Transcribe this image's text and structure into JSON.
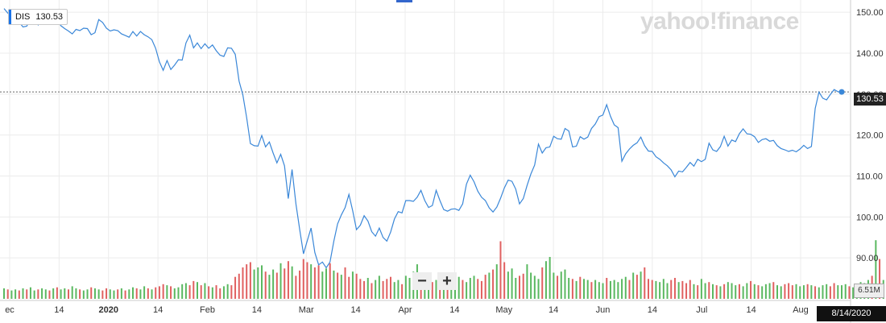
{
  "header": {
    "symbol": "DIS",
    "last_price": "130.53",
    "logo": "yahoo!finance"
  },
  "controls": {
    "zoom_out": "−",
    "zoom_in": "+"
  },
  "crosshair": {
    "date": "8/14/2020",
    "price": "130.53",
    "volume": "6.51M"
  },
  "colors": {
    "line": "#3a87d8",
    "volume_up": "#5ab860",
    "volume_down": "#e06060",
    "grid": "#ececec"
  },
  "chart_data": {
    "type": "line",
    "title": "",
    "symbol": "DIS",
    "y_axis": {
      "min": 80,
      "max": 152,
      "ticks": [
        "150.00",
        "140.00",
        "130.00",
        "120.00",
        "110.00",
        "100.00",
        "90.00"
      ],
      "side": "right"
    },
    "x_axis": {
      "tick_labels": [
        "ec",
        "14",
        "2020",
        "14",
        "Feb",
        "14",
        "Mar",
        "14",
        "Apr",
        "14",
        "May",
        "14",
        "Jun",
        "14",
        "Jul",
        "14",
        "Aug"
      ],
      "bold_labels": [
        "2020"
      ]
    },
    "grid": true,
    "reference_line": 130.53,
    "series": [
      {
        "values": [
          150.9,
          149.8,
          148.5,
          148.6,
          147.6,
          146.4,
          146.6,
          148.4,
          148.2,
          146.9,
          148.4,
          148.8,
          148.9,
          147.6,
          148.1,
          146.7,
          146.0,
          145.4,
          144.7,
          145.8,
          145.5,
          146.1,
          146.0,
          144.5,
          145.0,
          148.2,
          147.5,
          146.1,
          145.4,
          145.7,
          145.5,
          144.7,
          144.3,
          143.9,
          145.3,
          144.2,
          145.3,
          144.5,
          144.0,
          143.3,
          141.2,
          137.9,
          135.8,
          138.2,
          136.0,
          137.1,
          138.4,
          138.3,
          142.5,
          144.4,
          141.3,
          142.5,
          141.1,
          142.3,
          141.2,
          142.0,
          140.6,
          139.5,
          139.2,
          141.3,
          141.2,
          139.7,
          133.2,
          129.8,
          124.3,
          117.9,
          117.4,
          117.3,
          119.9,
          117.1,
          118.3,
          115.6,
          113.2,
          115.3,
          112.5,
          104.5,
          111.6,
          103.2,
          96.9,
          91.0,
          94.2,
          97.3,
          91.3,
          88.3,
          89.0,
          87.6,
          89.0,
          94.0,
          98.3,
          100.5,
          102.3,
          105.5,
          101.5,
          96.9,
          98.0,
          100.3,
          99.0,
          96.4,
          95.3,
          97.3,
          95.0,
          94.1,
          96.3,
          99.5,
          101.3,
          101.0,
          104.0,
          104.0,
          103.8,
          104.8,
          106.5,
          104.0,
          102.3,
          102.8,
          106.5,
          104.0,
          101.8,
          101.4,
          101.9,
          102.0,
          101.6,
          103.2,
          108.0,
          110.2,
          108.6,
          106.3,
          104.8,
          104.0,
          102.2,
          101.2,
          102.4,
          104.6,
          107.1,
          109.0,
          108.7,
          106.8,
          103.2,
          104.5,
          107.7,
          110.5,
          112.7,
          117.8,
          115.6,
          116.9,
          117.1,
          119.7,
          119.1,
          119.0,
          121.6,
          121.0,
          117.1,
          117.3,
          119.6,
          119.0,
          119.5,
          121.6,
          122.7,
          124.5,
          124.9,
          127.4,
          124.6,
          122.5,
          121.8,
          113.6,
          115.4,
          116.6,
          117.5,
          118.1,
          119.5,
          117.4,
          116.1,
          116.0,
          114.7,
          114.1,
          113.2,
          112.5,
          111.5,
          109.8,
          111.2,
          111.0,
          112.1,
          113.3,
          112.4,
          114.1,
          113.5,
          114.1,
          118.0,
          116.4,
          116.0,
          117.2,
          119.7,
          117.3,
          118.8,
          118.4,
          120.3,
          121.5,
          120.3,
          120.2,
          119.6,
          118.2,
          118.9,
          119.1,
          118.5,
          118.7,
          117.4,
          116.7,
          116.4,
          116.0,
          116.3,
          115.9,
          116.6,
          117.5,
          116.7,
          117.2,
          126.5,
          130.5,
          129.0,
          128.6,
          129.9,
          131.1,
          130.6,
          130.53
        ]
      }
    ],
    "volume": {
      "label": "6.51M",
      "values": [
        10,
        9,
        8,
        9,
        8,
        10,
        9,
        11,
        8,
        9,
        10,
        9,
        8,
        10,
        11,
        9,
        10,
        9,
        12,
        10,
        9,
        8,
        9,
        11,
        10,
        9,
        8,
        10,
        9,
        8,
        9,
        10,
        8,
        9,
        11,
        10,
        9,
        12,
        10,
        9,
        11,
        12,
        14,
        13,
        12,
        10,
        11,
        14,
        15,
        13,
        17,
        16,
        13,
        15,
        12,
        11,
        13,
        10,
        12,
        14,
        13,
        21,
        24,
        30,
        33,
        35,
        28,
        30,
        32,
        26,
        23,
        28,
        25,
        34,
        29,
        36,
        31,
        22,
        27,
        38,
        35,
        33,
        30,
        32,
        26,
        29,
        34,
        27,
        25,
        23,
        30,
        21,
        26,
        24,
        19,
        17,
        20,
        15,
        18,
        22,
        17,
        19,
        21,
        16,
        18,
        14,
        22,
        20,
        26,
        33,
        24,
        18,
        20,
        16,
        18,
        15,
        17,
        14,
        16,
        19,
        21,
        18,
        16,
        20,
        22,
        19,
        17,
        23,
        25,
        28,
        33,
        55,
        35,
        26,
        29,
        20,
        22,
        24,
        33,
        25,
        22,
        19,
        30,
        36,
        40,
        25,
        22,
        26,
        28,
        20,
        19,
        17,
        21,
        19,
        18,
        16,
        18,
        16,
        15,
        20,
        17,
        18,
        16,
        19,
        21,
        18,
        25,
        23,
        26,
        30,
        19,
        18,
        17,
        16,
        19,
        15,
        18,
        20,
        16,
        17,
        15,
        18,
        14,
        13,
        19,
        15,
        16,
        14,
        13,
        12,
        14,
        16,
        15,
        13,
        14,
        12,
        15,
        17,
        14,
        13,
        12,
        14,
        15,
        16,
        13,
        12,
        14,
        15,
        13,
        14,
        12,
        13,
        14,
        13,
        12,
        11,
        13,
        14,
        12,
        15,
        13,
        13,
        14,
        12,
        11,
        13,
        16,
        15,
        18,
        22,
        56,
        38,
        18,
        14,
        15,
        12,
        13,
        11
      ],
      "up": [
        1,
        0,
        1,
        1,
        0,
        1,
        0,
        1,
        1,
        0,
        1,
        1,
        0,
        1,
        0,
        1,
        1,
        0,
        1,
        1,
        0,
        1,
        1,
        0,
        1,
        1,
        0,
        0,
        1,
        1,
        0,
        1,
        0,
        1,
        1,
        0,
        1,
        1,
        0,
        1,
        0,
        0,
        0,
        1,
        0,
        1,
        1,
        1,
        1,
        0,
        0,
        1,
        0,
        1,
        0,
        1,
        0,
        0,
        1,
        1,
        0,
        0,
        0,
        0,
        0,
        0,
        1,
        1,
        1,
        0,
        1,
        1,
        0,
        1,
        0,
        0,
        1,
        0,
        0,
        0,
        0,
        1,
        0,
        0,
        1,
        1,
        0,
        1,
        0,
        1,
        0,
        0,
        1,
        0,
        0,
        0,
        1,
        0,
        1,
        1,
        0,
        0,
        0,
        1,
        1,
        0,
        1,
        1,
        1,
        1,
        0,
        1,
        1,
        0,
        1,
        0,
        1,
        0,
        1,
        1,
        1,
        0,
        1,
        1,
        1,
        0,
        0,
        0,
        1,
        0,
        1,
        0,
        0,
        1,
        1,
        1,
        0,
        0,
        1,
        1,
        1,
        1,
        0,
        1,
        1,
        1,
        0,
        1,
        1,
        1,
        0,
        1,
        0,
        1,
        1,
        0,
        1,
        1,
        1,
        0,
        1,
        1,
        1,
        1,
        1,
        0,
        1,
        0,
        1,
        0,
        0,
        0,
        1,
        1,
        1,
        1,
        0,
        0,
        1,
        0,
        0,
        0,
        1,
        0,
        1,
        1,
        0,
        1,
        0,
        1,
        0,
        1,
        1,
        1,
        0,
        1,
        1,
        0,
        1,
        0,
        1,
        1,
        1,
        0,
        1,
        1,
        0,
        0,
        0,
        1,
        1,
        1,
        0,
        1,
        0,
        1,
        1,
        1,
        0,
        0,
        1,
        1,
        1,
        0,
        1,
        1,
        1,
        1,
        1,
        0,
        1,
        0,
        1,
        1,
        0,
        0,
        1,
        1,
        0,
        0,
        1
      ]
    }
  }
}
